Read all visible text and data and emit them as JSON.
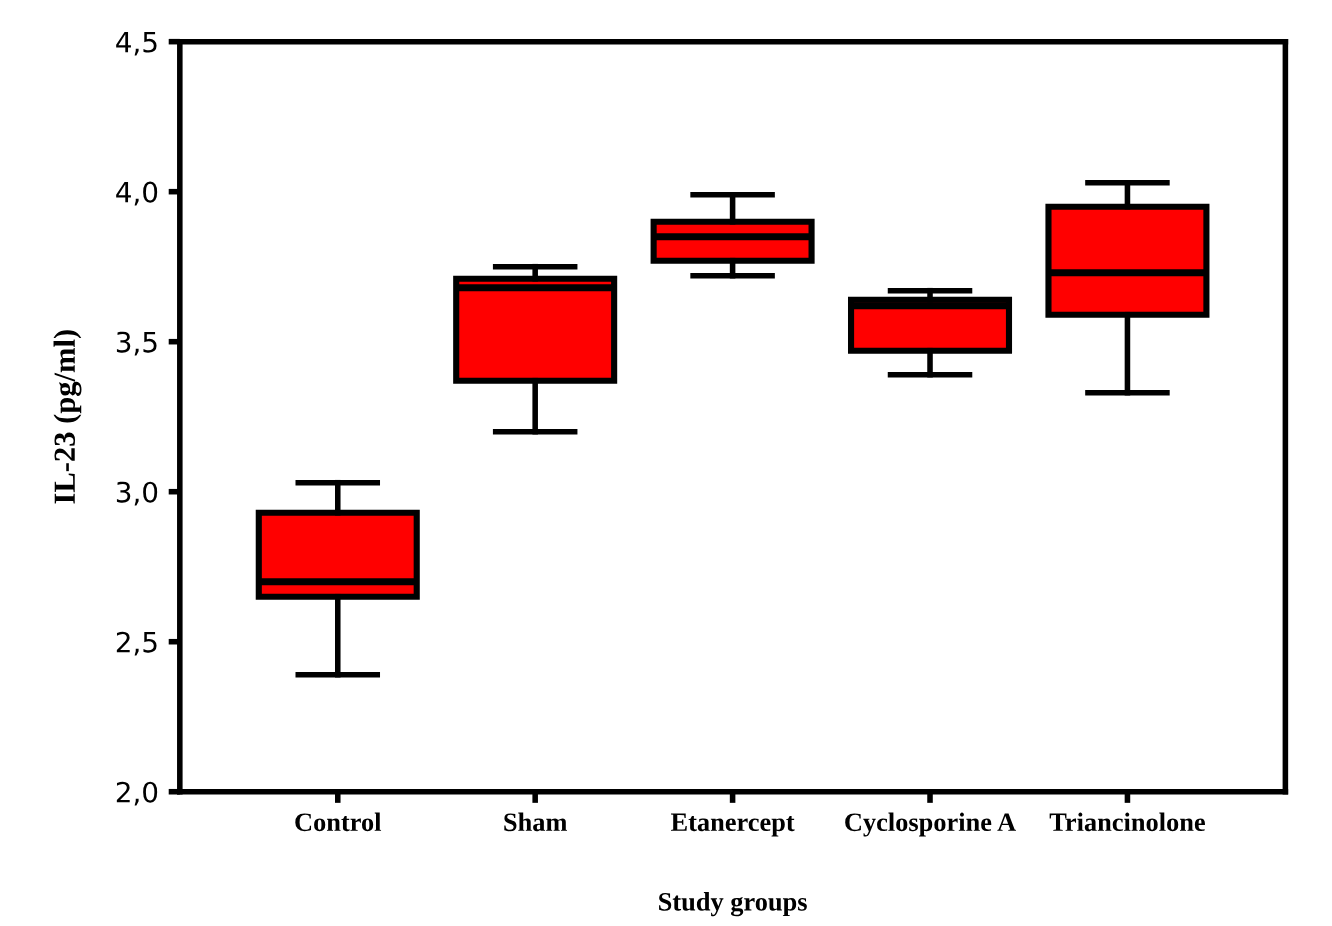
{
  "chart_data": {
    "type": "box",
    "xlabel": "Study groups",
    "ylabel": "IL-23 (pg/ml)",
    "categories": [
      "Control",
      "Sham",
      "Etanercept",
      "Cyclosporine A",
      "Triancinolone"
    ],
    "boxes": [
      {
        "low": 2.39,
        "q1": 2.65,
        "median": 2.7,
        "q3": 2.93,
        "high": 3.03
      },
      {
        "low": 3.2,
        "q1": 3.37,
        "median": 3.68,
        "q3": 3.71,
        "high": 3.75
      },
      {
        "low": 3.72,
        "q1": 3.77,
        "median": 3.85,
        "q3": 3.9,
        "high": 3.99
      },
      {
        "low": 3.39,
        "q1": 3.47,
        "median": 3.62,
        "q3": 3.64,
        "high": 3.67
      },
      {
        "low": 3.33,
        "q1": 3.59,
        "median": 3.73,
        "q3": 3.95,
        "high": 4.03
      }
    ],
    "color": "#ff0000",
    "ylim": [
      2.0,
      4.5
    ],
    "yticks": [
      {
        "value": 2.0,
        "label": "2,0"
      },
      {
        "value": 2.5,
        "label": "2,5"
      },
      {
        "value": 3.0,
        "label": "3,0"
      },
      {
        "value": 3.5,
        "label": "3,5"
      },
      {
        "value": 4.0,
        "label": "4,0"
      },
      {
        "value": 4.5,
        "label": "4,5"
      }
    ],
    "grid": false
  }
}
